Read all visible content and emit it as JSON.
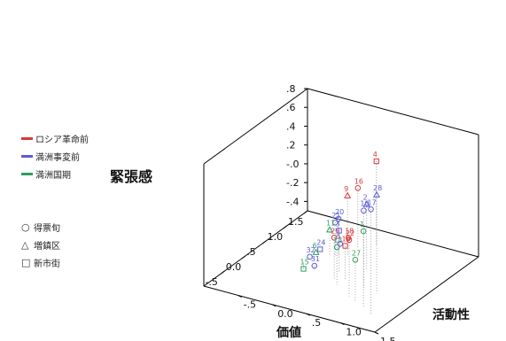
{
  "chart_data": {
    "type": "scatter3d",
    "title": "",
    "xlabel": "価値",
    "ylabel": "活動性",
    "zlabel": "緊張感",
    "xlim": [
      -1.0,
      1.5
    ],
    "ylim": [
      -1.0,
      1.5
    ],
    "zlim": [
      -0.5,
      0.8
    ],
    "xticks": [
      "1.5",
      "1.0",
      ".5",
      "0.0",
      "-.5"
    ],
    "yticks": [
      "-.5",
      "0.0",
      ".5",
      "1.0",
      "1.5"
    ],
    "zticks": [
      ".8",
      ".6",
      ".4",
      ".2",
      "-.0",
      "-.2",
      "-.4"
    ],
    "series": [
      {
        "name": "ロシア革命前",
        "color": "#d8393b"
      },
      {
        "name": "満洲事変前",
        "color": "#5b5bd6"
      },
      {
        "name": "満洲国期",
        "color": "#2f9e5e"
      }
    ],
    "marker_types": [
      {
        "name": "得票旬",
        "symbol": "circle"
      },
      {
        "name": "増鎮区",
        "symbol": "triangle"
      },
      {
        "name": "新市街",
        "symbol": "square"
      }
    ],
    "points": [
      {
        "id": "28",
        "x": -0.05,
        "y": 0.95,
        "z": 0.55,
        "series": 1,
        "marker": "triangle"
      },
      {
        "id": "17",
        "x": -0.6,
        "y": 1.2,
        "z": 0.62,
        "series": 1,
        "marker": "circle"
      },
      {
        "id": "10",
        "x": 0.05,
        "y": 0.7,
        "z": 0.3,
        "series": 1,
        "marker": "circle"
      },
      {
        "id": "1",
        "x": -0.45,
        "y": 1.0,
        "z": 0.3,
        "series": 2,
        "marker": "circle"
      },
      {
        "id": "2",
        "x": 0.45,
        "y": 0.5,
        "z": 0.2,
        "series": 1,
        "marker": "triangle"
      },
      {
        "id": "22",
        "x": -0.3,
        "y": 0.7,
        "z": 0.1,
        "series": 0,
        "marker": "circle"
      },
      {
        "id": "27",
        "x": -0.4,
        "y": 0.85,
        "z": -0.05,
        "series": 2,
        "marker": "circle"
      },
      {
        "id": "4",
        "x": 1.1,
        "y": 0.25,
        "z": 0.4,
        "series": 0,
        "marker": "square"
      },
      {
        "id": "9",
        "x": 0.65,
        "y": 0.1,
        "z": 0.15,
        "series": 0,
        "marker": "triangle"
      },
      {
        "id": "16",
        "x": 0.9,
        "y": 0.1,
        "z": 0.15,
        "series": 0,
        "marker": "circle"
      },
      {
        "id": "29",
        "x": 0.0,
        "y": 0.3,
        "z": -0.05,
        "series": 0,
        "marker": "circle"
      },
      {
        "id": "3",
        "x": 0.2,
        "y": 0.25,
        "z": -0.05,
        "series": 1,
        "marker": "square"
      },
      {
        "id": "13",
        "x": -0.1,
        "y": 0.4,
        "z": -0.1,
        "series": 2,
        "marker": "circle"
      },
      {
        "id": "19",
        "x": 0.1,
        "y": 0.4,
        "z": -0.15,
        "series": 0,
        "marker": "square"
      },
      {
        "id": "20",
        "x": 0.6,
        "y": 0.0,
        "z": -0.1,
        "series": 1,
        "marker": "circle"
      },
      {
        "id": "21",
        "x": 0.6,
        "y": -0.05,
        "z": -0.15,
        "series": 1,
        "marker": "circle"
      },
      {
        "id": "11",
        "x": 0.55,
        "y": -0.1,
        "z": -0.22,
        "series": 2,
        "marker": "triangle"
      },
      {
        "id": "18",
        "x": 1.0,
        "y": -0.1,
        "z": -0.45,
        "series": 0,
        "marker": "circle"
      },
      {
        "id": "5",
        "x": 0.8,
        "y": -0.1,
        "z": -0.45,
        "series": 1,
        "marker": "circle"
      },
      {
        "id": "24",
        "x": 0.65,
        "y": -0.3,
        "z": -0.5,
        "series": 1,
        "marker": "square"
      },
      {
        "id": "6",
        "x": 0.55,
        "y": -0.3,
        "z": -0.5,
        "series": 2,
        "marker": "triangle"
      },
      {
        "id": "32",
        "x": 0.4,
        "y": -0.3,
        "z": -0.5,
        "series": 1,
        "marker": "circle"
      },
      {
        "id": "15",
        "x": 0.25,
        "y": -0.3,
        "z": -0.58,
        "series": 2,
        "marker": "square"
      },
      {
        "id": "31",
        "x": 0.1,
        "y": -0.05,
        "z": -0.45,
        "series": 1,
        "marker": "circle"
      }
    ]
  }
}
